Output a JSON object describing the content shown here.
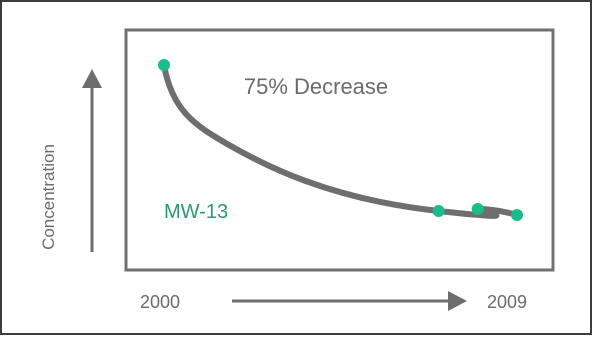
{
  "chart_data": {
    "type": "line",
    "x_start_label": "2000",
    "x_end_label": "2009",
    "ylabel": "Concentration",
    "annotation": "75% Decrease",
    "series_label": "MW-13",
    "series": [
      {
        "name": "MW-13",
        "points": [
          {
            "x": 2000.0,
            "y": 100
          },
          {
            "x": 2007.0,
            "y": 27
          },
          {
            "x": 2008.0,
            "y": 28
          },
          {
            "x": 2009.0,
            "y": 25
          }
        ]
      }
    ],
    "colors": {
      "line": "#6e6e6e",
      "point": "#1abc8c",
      "series_label": "#2a9a6f",
      "text": "#6b6b6b",
      "axis": "#6e6e6e"
    }
  }
}
